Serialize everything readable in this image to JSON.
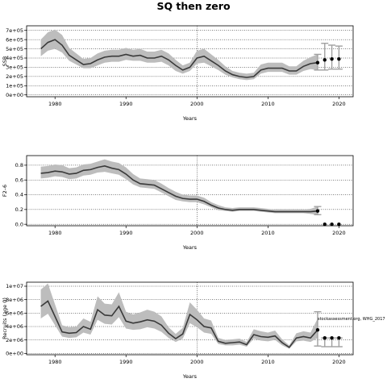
{
  "title": "SQ then zero",
  "chart_data": [
    {
      "type": "line",
      "xlabel": "Years",
      "ylabel": "SSB",
      "xlim": [
        1976,
        2022
      ],
      "ylim": [
        -20000,
        750000
      ],
      "xticks": [
        1980,
        1990,
        2000,
        2010,
        2020
      ],
      "xtick_labels": [
        "1980",
        "1990",
        "2000",
        "2010",
        "2020"
      ],
      "yticks": [
        0,
        100000,
        200000,
        300000,
        400000,
        500000,
        600000,
        700000
      ],
      "ytick_labels": [
        "0e+00",
        "1e+05",
        "2e+05",
        "3e+05",
        "4e+05",
        "5e+05",
        "6e+05",
        "7e+05"
      ],
      "grid": "dotted vertical at 2000, dotted horizontal at each y tick",
      "series": [
        {
          "style": "historic estimate with grey confidence band",
          "x": [
            1978,
            1979,
            1980,
            1981,
            1982,
            1983,
            1984,
            1985,
            1986,
            1987,
            1988,
            1989,
            1990,
            1991,
            1992,
            1993,
            1994,
            1995,
            1996,
            1997,
            1998,
            1999,
            2000,
            2001,
            2002,
            2003,
            2004,
            2005,
            2006,
            2007,
            2008,
            2009,
            2010,
            2011,
            2012,
            2013,
            2014,
            2015,
            2016,
            2017
          ],
          "y": [
            500000,
            570000,
            600000,
            540000,
            430000,
            380000,
            330000,
            340000,
            380000,
            410000,
            420000,
            420000,
            440000,
            420000,
            430000,
            400000,
            400000,
            420000,
            380000,
            320000,
            270000,
            300000,
            400000,
            420000,
            370000,
            320000,
            260000,
            220000,
            200000,
            190000,
            200000,
            270000,
            290000,
            290000,
            290000,
            260000,
            260000,
            310000,
            340000,
            350000
          ],
          "lower": [
            420000,
            480000,
            500000,
            460000,
            370000,
            330000,
            290000,
            290000,
            320000,
            350000,
            360000,
            360000,
            380000,
            370000,
            370000,
            350000,
            350000,
            360000,
            320000,
            260000,
            230000,
            260000,
            340000,
            350000,
            310000,
            270000,
            220000,
            190000,
            170000,
            160000,
            170000,
            230000,
            250000,
            250000,
            250000,
            220000,
            220000,
            260000,
            280000,
            270000
          ],
          "upper": [
            600000,
            680000,
            710000,
            650000,
            510000,
            450000,
            390000,
            400000,
            450000,
            480000,
            490000,
            490000,
            510000,
            490000,
            500000,
            470000,
            470000,
            490000,
            450000,
            380000,
            320000,
            350000,
            480000,
            500000,
            440000,
            380000,
            310000,
            260000,
            240000,
            230000,
            240000,
            330000,
            350000,
            350000,
            350000,
            310000,
            310000,
            370000,
            410000,
            440000
          ]
        },
        {
          "style": "projection points with error bars",
          "x": [
            2017,
            2018,
            2019,
            2020
          ],
          "y": [
            350000,
            380000,
            390000,
            390000
          ],
          "lower": [
            270000,
            270000,
            280000,
            280000
          ],
          "upper": [
            440000,
            560000,
            540000,
            530000
          ]
        }
      ]
    },
    {
      "type": "line",
      "xlabel": "Years",
      "ylabel": "F2–6",
      "xlim": [
        1976,
        2022
      ],
      "ylim": [
        -0.02,
        0.93
      ],
      "xticks": [
        1980,
        1990,
        2000,
        2010,
        2020
      ],
      "xtick_labels": [
        "1980",
        "1990",
        "2000",
        "2010",
        "2020"
      ],
      "yticks": [
        0.0,
        0.2,
        0.4,
        0.6,
        0.8
      ],
      "ytick_labels": [
        "0.0",
        "0.2",
        "0.4",
        "0.6",
        "0.8"
      ],
      "grid": "dotted vertical at 2000, dotted horizontal at each y tick",
      "series": [
        {
          "style": "historic estimate with grey confidence band",
          "x": [
            1978,
            1979,
            1980,
            1981,
            1982,
            1983,
            1984,
            1985,
            1986,
            1987,
            1988,
            1989,
            1990,
            1991,
            1992,
            1993,
            1994,
            1995,
            1996,
            1997,
            1998,
            1999,
            2000,
            2001,
            2002,
            2003,
            2004,
            2005,
            2006,
            2007,
            2008,
            2009,
            2010,
            2011,
            2012,
            2013,
            2014,
            2015,
            2016,
            2017
          ],
          "y": [
            0.69,
            0.7,
            0.72,
            0.71,
            0.68,
            0.69,
            0.73,
            0.74,
            0.77,
            0.79,
            0.76,
            0.74,
            0.68,
            0.6,
            0.55,
            0.54,
            0.53,
            0.48,
            0.43,
            0.38,
            0.35,
            0.34,
            0.34,
            0.31,
            0.26,
            0.22,
            0.2,
            0.19,
            0.2,
            0.2,
            0.2,
            0.19,
            0.18,
            0.17,
            0.17,
            0.17,
            0.17,
            0.17,
            0.17,
            0.18
          ],
          "lower": [
            0.62,
            0.63,
            0.65,
            0.64,
            0.61,
            0.62,
            0.66,
            0.67,
            0.7,
            0.71,
            0.69,
            0.67,
            0.61,
            0.54,
            0.5,
            0.49,
            0.48,
            0.43,
            0.38,
            0.33,
            0.31,
            0.3,
            0.3,
            0.27,
            0.23,
            0.19,
            0.18,
            0.17,
            0.18,
            0.18,
            0.18,
            0.17,
            0.16,
            0.15,
            0.15,
            0.15,
            0.15,
            0.15,
            0.14,
            0.13
          ],
          "upper": [
            0.78,
            0.79,
            0.81,
            0.8,
            0.76,
            0.77,
            0.81,
            0.82,
            0.85,
            0.88,
            0.85,
            0.83,
            0.77,
            0.68,
            0.62,
            0.61,
            0.6,
            0.55,
            0.49,
            0.44,
            0.4,
            0.39,
            0.39,
            0.36,
            0.3,
            0.26,
            0.23,
            0.22,
            0.23,
            0.23,
            0.23,
            0.22,
            0.21,
            0.2,
            0.2,
            0.2,
            0.2,
            0.2,
            0.21,
            0.24
          ]
        },
        {
          "style": "projection points with error bars",
          "x": [
            2017,
            2018,
            2019,
            2020
          ],
          "y": [
            0.18,
            0.0,
            0.0,
            0.0
          ],
          "lower": [
            0.13,
            0.0,
            0.0,
            0.0
          ],
          "upper": [
            0.24,
            0.0,
            0.0,
            0.0
          ]
        }
      ]
    },
    {
      "type": "line",
      "xlabel": "Years",
      "ylabel": "Recruits (age 0)",
      "xlim": [
        1976,
        2022
      ],
      "ylim": [
        -200000,
        10600000
      ],
      "xticks": [
        1980,
        1990,
        2000,
        2010,
        2020
      ],
      "xtick_labels": [
        "1980",
        "1990",
        "2000",
        "2010",
        "2020"
      ],
      "yticks": [
        0,
        2000000,
        4000000,
        6000000,
        8000000,
        10000000
      ],
      "ytick_labels": [
        "0e+00",
        "2e+06",
        "4e+06",
        "6e+06",
        "8e+06",
        "1e+07"
      ],
      "grid": "dotted vertical at 2000, dotted horizontal at each y tick",
      "annotation": "stockassessment.org, WHG_2017",
      "series": [
        {
          "style": "historic estimate with grey confidence band",
          "x": [
            1978,
            1979,
            1980,
            1981,
            1982,
            1983,
            1984,
            1985,
            1986,
            1987,
            1988,
            1989,
            1990,
            1991,
            1992,
            1993,
            1994,
            1995,
            1996,
            1997,
            1998,
            1999,
            2000,
            2001,
            2002,
            2003,
            2004,
            2005,
            2006,
            2007,
            2008,
            2009,
            2010,
            2011,
            2012,
            2013,
            2014,
            2015,
            2016,
            2017
          ],
          "y": [
            7000000,
            7800000,
            5500000,
            3200000,
            3000000,
            3100000,
            4000000,
            3600000,
            6500000,
            5700000,
            5600000,
            7000000,
            4800000,
            4500000,
            4700000,
            5000000,
            4800000,
            4200000,
            3000000,
            2200000,
            2900000,
            5800000,
            5000000,
            4000000,
            3800000,
            1800000,
            1500000,
            1600000,
            1700000,
            1300000,
            2800000,
            2500000,
            2400000,
            2600000,
            1600000,
            900000,
            2300000,
            2500000,
            2300000,
            3500000
          ],
          "lower": [
            5200000,
            5900000,
            4200000,
            2500000,
            2300000,
            2400000,
            3100000,
            2800000,
            5000000,
            4400000,
            4300000,
            5400000,
            3700000,
            3500000,
            3600000,
            3900000,
            3700000,
            3200000,
            2300000,
            1700000,
            2200000,
            4500000,
            3900000,
            3100000,
            2900000,
            1400000,
            1200000,
            1200000,
            1300000,
            1000000,
            2200000,
            1900000,
            1800000,
            2000000,
            1200000,
            700000,
            1800000,
            1900000,
            1700000,
            2300000
          ],
          "upper": [
            9500000,
            10400000,
            7300000,
            4200000,
            3900000,
            4000000,
            5200000,
            4700000,
            8500000,
            7400000,
            7300000,
            9100000,
            6200000,
            5800000,
            6100000,
            6500000,
            6200000,
            5500000,
            3900000,
            2900000,
            3800000,
            7600000,
            6500000,
            5200000,
            4900000,
            2300000,
            2000000,
            2100000,
            2200000,
            1700000,
            3600000,
            3300000,
            3100000,
            3400000,
            2100000,
            1200000,
            3000000,
            3300000,
            3100000,
            5200000
          ]
        },
        {
          "style": "projection points with error bars",
          "x": [
            2017,
            2018,
            2019,
            2020
          ],
          "y": [
            3500000,
            2300000,
            2300000,
            2300000
          ],
          "lower": [
            1100000,
            1000000,
            1000000,
            1000000
          ],
          "upper": [
            6200000,
            2300000,
            2300000,
            2300000
          ]
        }
      ]
    }
  ]
}
